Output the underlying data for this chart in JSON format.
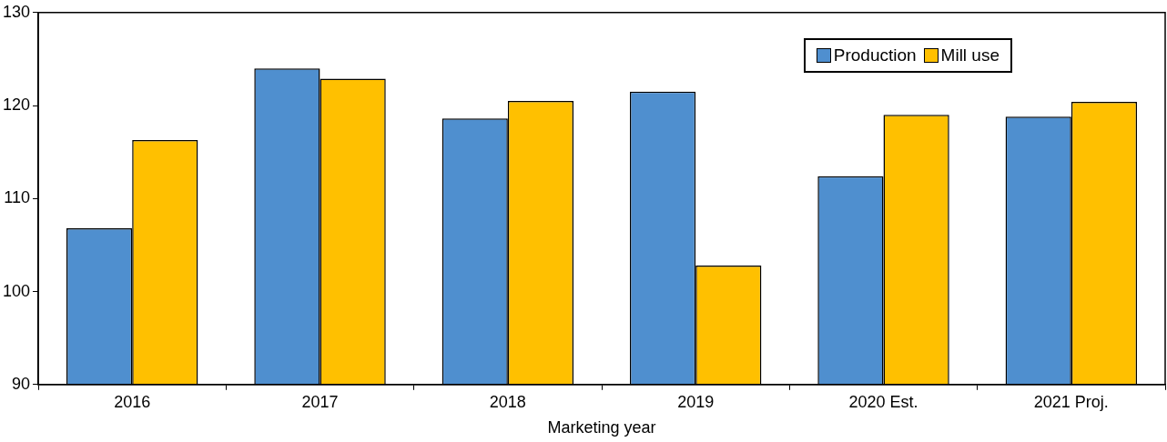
{
  "chart_data": {
    "type": "bar",
    "xlabel": "Marketing year",
    "categories": [
      "2016",
      "2017",
      "2018",
      "2019",
      "2020 Est.",
      "2021 Proj."
    ],
    "series": [
      {
        "name": "Production",
        "color": "#4f8fcf",
        "values": [
          106.8,
          124.0,
          118.6,
          121.5,
          112.4,
          118.8
        ]
      },
      {
        "name": "Mill use",
        "color": "#ffc000",
        "values": [
          116.3,
          122.9,
          120.5,
          102.8,
          119.0,
          120.4
        ]
      }
    ],
    "ylim": [
      90,
      130
    ],
    "yticks": [
      90,
      100,
      110,
      120,
      130
    ],
    "grid": false,
    "legend": "top right"
  }
}
